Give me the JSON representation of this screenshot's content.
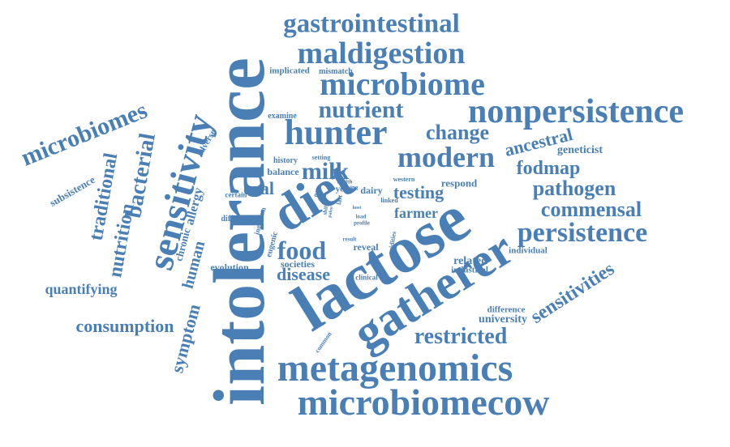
{
  "color": "#4a7fb5",
  "words": [
    {
      "text": "intolerance",
      "orientation": "vertical"
    },
    {
      "text": "lactose",
      "orientation": "angled"
    },
    {
      "text": "diet",
      "orientation": "angled"
    },
    {
      "text": "gatherer",
      "orientation": "angled"
    },
    {
      "text": "sensitivity",
      "orientation": "vertical"
    },
    {
      "text": "metagenomics",
      "orientation": "horizontal"
    },
    {
      "text": "microbiomecow",
      "orientation": "horizontal"
    },
    {
      "text": "nonpersistence",
      "orientation": "horizontal"
    },
    {
      "text": "hunter",
      "orientation": "horizontal"
    },
    {
      "text": "microbiome",
      "orientation": "horizontal"
    },
    {
      "text": "maldigestion",
      "orientation": "horizontal"
    },
    {
      "text": "gastrointestinal",
      "orientation": "horizontal"
    },
    {
      "text": "nutrient",
      "orientation": "horizontal"
    },
    {
      "text": "microbiomes",
      "orientation": "angled"
    },
    {
      "text": "persistence",
      "orientation": "horizontal"
    },
    {
      "text": "modern",
      "orientation": "horizontal"
    },
    {
      "text": "food",
      "orientation": "horizontal"
    },
    {
      "text": "milk",
      "orientation": "horizontal"
    },
    {
      "text": "bacterial",
      "orientation": "vertical"
    },
    {
      "text": "traditional",
      "orientation": "vertical"
    },
    {
      "text": "nutrition",
      "orientation": "vertical"
    },
    {
      "text": "sensitivities",
      "orientation": "angled"
    },
    {
      "text": "restricted",
      "orientation": "horizontal"
    },
    {
      "text": "pathogen",
      "orientation": "horizontal"
    },
    {
      "text": "commensal",
      "orientation": "horizontal"
    },
    {
      "text": "fodmap",
      "orientation": "horizontal"
    },
    {
      "text": "change",
      "orientation": "horizontal"
    },
    {
      "text": "ancestral",
      "orientation": "angled"
    },
    {
      "text": "consumption",
      "orientation": "horizontal"
    },
    {
      "text": "symptom",
      "orientation": "vertical"
    },
    {
      "text": "disease",
      "orientation": "horizontal"
    },
    {
      "text": "testing",
      "orientation": "horizontal"
    },
    {
      "text": "oral",
      "orientation": "horizontal"
    },
    {
      "text": "human",
      "orientation": "vertical"
    },
    {
      "text": "quantifying",
      "orientation": "horizontal"
    },
    {
      "text": "farmer",
      "orientation": "horizontal"
    },
    {
      "text": "allergy",
      "orientation": "vertical"
    },
    {
      "text": "chronic",
      "orientation": "vertical"
    },
    {
      "text": "subsistence",
      "orientation": "angled"
    },
    {
      "text": "geneticist",
      "orientation": "horizontal"
    },
    {
      "text": "related",
      "orientation": "horizontal"
    },
    {
      "text": "university",
      "orientation": "horizontal"
    },
    {
      "text": "evolution",
      "orientation": "horizontal"
    },
    {
      "text": "societies",
      "orientation": "horizontal"
    },
    {
      "text": "balance",
      "orientation": "horizontal"
    },
    {
      "text": "respond",
      "orientation": "horizontal"
    },
    {
      "text": "adverse",
      "orientation": "vertical"
    },
    {
      "text": "industrial",
      "orientation": "horizontal"
    },
    {
      "text": "individual",
      "orientation": "horizontal"
    },
    {
      "text": "difference",
      "orientation": "horizontal"
    },
    {
      "text": "eugenic",
      "orientation": "vertical"
    },
    {
      "text": "implicated",
      "orientation": "horizontal"
    },
    {
      "text": "mismatch",
      "orientation": "horizontal"
    },
    {
      "text": "examine",
      "orientation": "horizontal"
    },
    {
      "text": "history",
      "orientation": "horizontal"
    },
    {
      "text": "setting",
      "orientation": "horizontal"
    },
    {
      "text": "health",
      "orientation": "horizontal"
    },
    {
      "text": "living",
      "orientation": "horizontal"
    },
    {
      "text": "year",
      "orientation": "horizontal"
    },
    {
      "text": "dairy",
      "orientation": "horizontal"
    },
    {
      "text": "western",
      "orientation": "horizontal"
    },
    {
      "text": "linked",
      "orientation": "horizontal"
    },
    {
      "text": "last",
      "orientation": "vertical"
    },
    {
      "text": "data",
      "orientation": "horizontal"
    },
    {
      "text": "host",
      "orientation": "horizontal"
    },
    {
      "text": "load",
      "orientation": "horizontal"
    },
    {
      "text": "profile",
      "orientation": "horizontal"
    },
    {
      "text": "certain",
      "orientation": "horizontal"
    },
    {
      "text": "different",
      "orientation": "horizontal"
    },
    {
      "text": "ingestion",
      "orientation": "vertical"
    },
    {
      "text": "shift",
      "orientation": "vertical"
    },
    {
      "text": "paleo",
      "orientation": "vertical"
    },
    {
      "text": "result",
      "orientation": "horizontal"
    },
    {
      "text": "reveal",
      "orientation": "horizontal"
    },
    {
      "text": "avidities",
      "orientation": "vertical"
    },
    {
      "text": "clinical",
      "orientation": "horizontal"
    },
    {
      "text": "common",
      "orientation": "vertical"
    }
  ]
}
